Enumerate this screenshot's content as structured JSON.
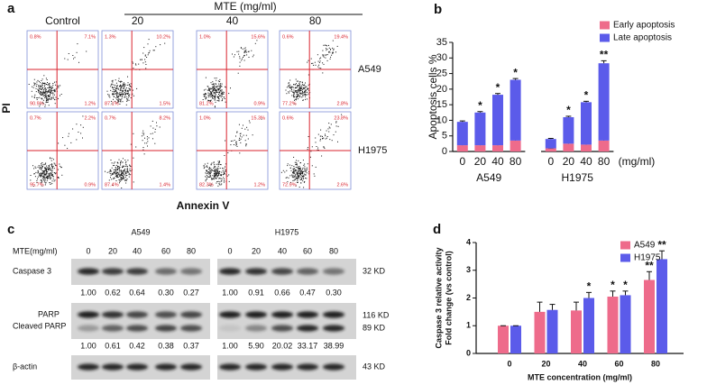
{
  "panel_labels": [
    "a",
    "b",
    "c",
    "d"
  ],
  "flow_cytometry": {
    "y_label": "PI",
    "x_label": "Annexin V",
    "group_label": "MTE (mg/ml)",
    "columns": [
      "Control",
      "20",
      "40",
      "80"
    ],
    "rows": [
      {
        "label": "A549",
        "plots": [
          [
            "0.8%",
            "7.1%",
            "90.9%",
            "1.2%"
          ],
          [
            "1.3%",
            "10.2%",
            "87.1%",
            "1.5%"
          ],
          [
            "1.0%",
            "15.6%",
            "81.2%",
            "0.9%"
          ],
          [
            "0.6%",
            "19.4%",
            "77.2%",
            "2.8%"
          ]
        ]
      },
      {
        "label": "H1975",
        "plots": [
          [
            "0.7%",
            "2.2%",
            "95.7%",
            "0.9%"
          ],
          [
            "0.7%",
            "8.2%",
            "87.4%",
            "1.4%"
          ],
          [
            "1.0%",
            "15.3%",
            "82.3%",
            "1.2%"
          ],
          [
            "0.6%",
            "23.8%",
            "72.9%",
            "2.6%"
          ]
        ]
      }
    ]
  },
  "western_blot": {
    "cell_lines": [
      "A549",
      "H1975"
    ],
    "dose_label": "MTE(mg/ml)",
    "doses": [
      [
        "0",
        "20",
        "40",
        "60",
        "80"
      ],
      [
        "0",
        "20",
        "40",
        "60",
        "80"
      ]
    ],
    "rows": [
      {
        "labels": [
          "Caspase 3"
        ],
        "sizes": [
          "32 KD"
        ],
        "quantification": [
          [
            "1.00",
            "0.62",
            "0.64",
            "0.30",
            "0.27"
          ],
          [
            "1.00",
            "0.91",
            "0.66",
            "0.47",
            "0.30"
          ]
        ]
      },
      {
        "labels": [
          "PARP",
          "Cleaved PARP"
        ],
        "sizes": [
          "116 KD",
          "89 KD"
        ],
        "quantification": [
          [
            "1.00",
            "0.61",
            "0.42",
            "0.38",
            "0.37"
          ],
          [
            "1.00",
            "5.90",
            "20.02",
            "33.17",
            "38.99"
          ]
        ]
      },
      {
        "labels": [
          "β-actin"
        ],
        "sizes": [
          "43 KD"
        ]
      }
    ]
  },
  "chart_data": [
    {
      "type": "bar",
      "stacked": true,
      "y_label": "Apoptosis cells %",
      "x_unit": "(mg/ml)",
      "categories": [
        "0",
        "20",
        "40",
        "80",
        "0",
        "20",
        "40",
        "80"
      ],
      "groups": [
        "A549",
        "H1975"
      ],
      "series": [
        {
          "name": "Early apoptosis",
          "color": "#ee6b8b",
          "values": [
            2,
            2,
            2,
            3.5,
            1,
            2.5,
            2.2,
            3.5
          ],
          "errors": [
            0.5,
            0.4,
            0.9,
            0.4,
            0.1,
            0.5,
            0.5,
            0.4
          ]
        },
        {
          "name": "Late apoptosis",
          "color": "#5b5bea",
          "values": [
            7.5,
            10.5,
            16.2,
            19.5,
            3,
            8.5,
            13.6,
            24.8
          ],
          "errors": [
            0.3,
            0.3,
            0.4,
            0.4,
            0.2,
            0.3,
            0.3,
            0.8
          ],
          "significance": [
            null,
            "*",
            "*",
            "*",
            null,
            "*",
            "*",
            "**"
          ]
        }
      ],
      "ylim": [
        0,
        35
      ],
      "yticks": [
        0,
        5,
        10,
        15,
        20,
        25,
        30,
        35
      ],
      "legend": "upper right"
    },
    {
      "type": "bar",
      "stacked": false,
      "y_label": [
        "Caspase 3 relative activity",
        "Fold change (vs control)"
      ],
      "x_label": "MTE concentration (mg/ml)",
      "categories": [
        "0",
        "20",
        "40",
        "60",
        "80"
      ],
      "series": [
        {
          "name": "A549",
          "color": "#ee6b8b",
          "values": [
            1,
            1.5,
            1.55,
            2.05,
            2.65
          ],
          "errors": [
            0,
            0.35,
            0.3,
            0.2,
            0.3
          ],
          "significance": [
            null,
            null,
            null,
            "*",
            "**"
          ]
        },
        {
          "name": "H1975",
          "color": "#5b5bea",
          "values": [
            1,
            1.57,
            2.0,
            2.1,
            3.4
          ],
          "errors": [
            0,
            0.2,
            0.2,
            0.15,
            0.3
          ],
          "significance": [
            null,
            null,
            "*",
            "*",
            "**"
          ]
        }
      ],
      "ylim": [
        0,
        4
      ],
      "yticks": [
        0,
        1,
        2,
        3,
        4
      ],
      "legend": "upper right"
    }
  ]
}
